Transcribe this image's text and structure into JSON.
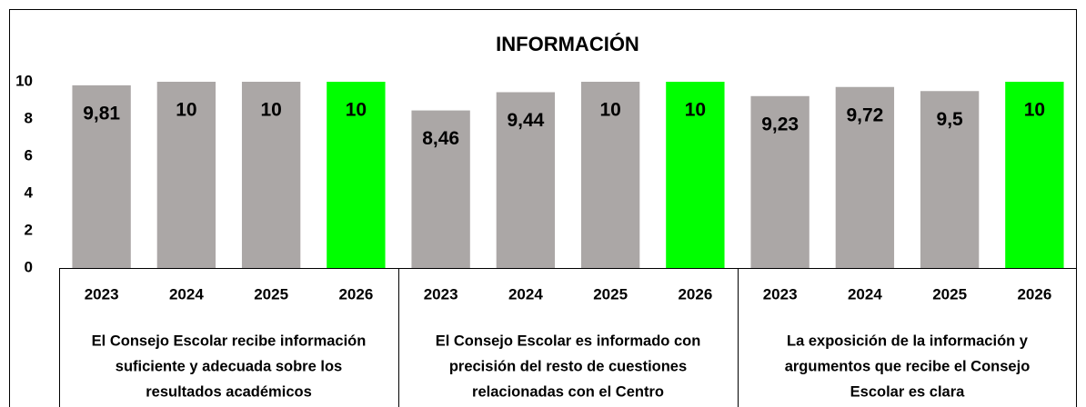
{
  "chart_data": {
    "type": "bar",
    "title": "INFORMACIÓN",
    "ylim": [
      0,
      10
    ],
    "yticks": [
      0,
      2,
      4,
      6,
      8,
      10
    ],
    "colors": [
      "#aba7a6",
      "#aba7a6",
      "#aba7a6",
      "#00ff00"
    ],
    "groups": [
      {
        "name_lines": [
          "El Consejo Escolar recibe información",
          "suficiente y adecuada sobre los",
          "resultados académicos"
        ],
        "categories": [
          "2023",
          "2024",
          "2025",
          "2026"
        ],
        "values": [
          9.81,
          10,
          10,
          10
        ],
        "value_labels": [
          "9,81",
          "10",
          "10",
          "10"
        ]
      },
      {
        "name_lines": [
          "El Consejo Escolar es informado con",
          "precisión del resto de cuestiones",
          "relacionadas con el Centro"
        ],
        "categories": [
          "2023",
          "2024",
          "2025",
          "2026"
        ],
        "values": [
          8.46,
          9.44,
          10,
          10
        ],
        "value_labels": [
          "8,46",
          "9,44",
          "10",
          "10"
        ]
      },
      {
        "name_lines": [
          "La exposición de la información y",
          "argumentos que recibe el Consejo",
          "Escolar es clara"
        ],
        "categories": [
          "2023",
          "2024",
          "2025",
          "2026"
        ],
        "values": [
          9.23,
          9.72,
          9.5,
          10
        ],
        "value_labels": [
          "9,23",
          "9,72",
          "9,5",
          "10"
        ]
      }
    ]
  }
}
